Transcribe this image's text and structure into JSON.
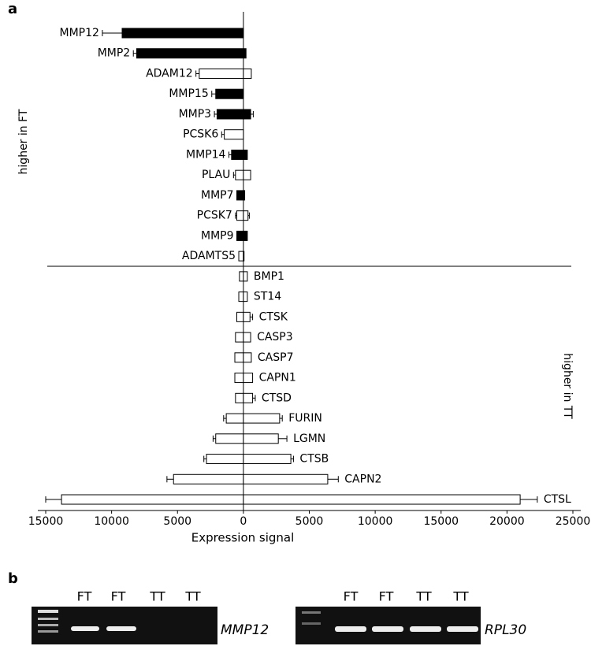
{
  "chart_data": {
    "type": "butterfly-bar",
    "panel_a_label": "a",
    "panel_b_label": "b",
    "x_label": "Expression signal",
    "upper_label": "higher in FT",
    "lower_label": "higher in TT",
    "categories": [
      "MMP12",
      "MMP2",
      "ADAM12",
      "MMP15",
      "MMP3",
      "PCSK6",
      "MMP14",
      "PLAU",
      "MMP7",
      "PCSK7",
      "MMP9",
      "ADAMTS5",
      "BMP1",
      "ST14",
      "CTSK",
      "CASP3",
      "CASP7",
      "CAPN1",
      "CTSD",
      "FURIN",
      "LGMN",
      "CTSB",
      "CAPN2",
      "CTSL"
    ],
    "upper_count": 12,
    "left_values": [
      -9200,
      -8100,
      -3350,
      -2100,
      -2000,
      -1450,
      -900,
      -600,
      -500,
      -500,
      -500,
      -350,
      -300,
      -350,
      -500,
      -600,
      -650,
      -650,
      -600,
      -1300,
      -2100,
      -2800,
      -5300,
      -13800
    ],
    "right_values": [
      0,
      200,
      600,
      0,
      550,
      0,
      300,
      550,
      100,
      350,
      300,
      50,
      300,
      300,
      500,
      550,
      600,
      700,
      700,
      2750,
      2650,
      3600,
      6400,
      21000
    ],
    "left_errors": [
      1500,
      250,
      250,
      300,
      200,
      200,
      200,
      150,
      null,
      100,
      null,
      null,
      null,
      null,
      null,
      null,
      null,
      null,
      null,
      200,
      200,
      200,
      500,
      1200
    ],
    "right_errors": [
      null,
      null,
      null,
      null,
      200,
      null,
      null,
      null,
      null,
      100,
      null,
      null,
      null,
      null,
      200,
      null,
      null,
      null,
      200,
      200,
      650,
      200,
      800,
      1300
    ],
    "colors": [
      "#000",
      "#000",
      "#fff",
      "#000",
      "#000",
      "#fff",
      "#000",
      "#fff",
      "#000",
      "#fff",
      "#000",
      "#fff",
      "#fff",
      "#fff",
      "#fff",
      "#fff",
      "#fff",
      "#fff",
      "#fff",
      "#fff",
      "#fff",
      "#fff",
      "#fff",
      "#fff"
    ],
    "xlim": [
      -15000,
      25000
    ],
    "xticks": [
      {
        "value": -15000,
        "label": "15000"
      },
      {
        "value": -10000,
        "label": "10000"
      },
      {
        "value": -5000,
        "label": "5000"
      },
      0,
      5000,
      10000,
      15000,
      20000,
      25000
    ]
  },
  "gels": [
    {
      "lanes": [
        "FT",
        "FT",
        "TT",
        "TT"
      ],
      "gene": "MMP12"
    },
    {
      "lanes": [
        "FT",
        "FT",
        "TT",
        "TT"
      ],
      "gene": "RPL30"
    }
  ]
}
